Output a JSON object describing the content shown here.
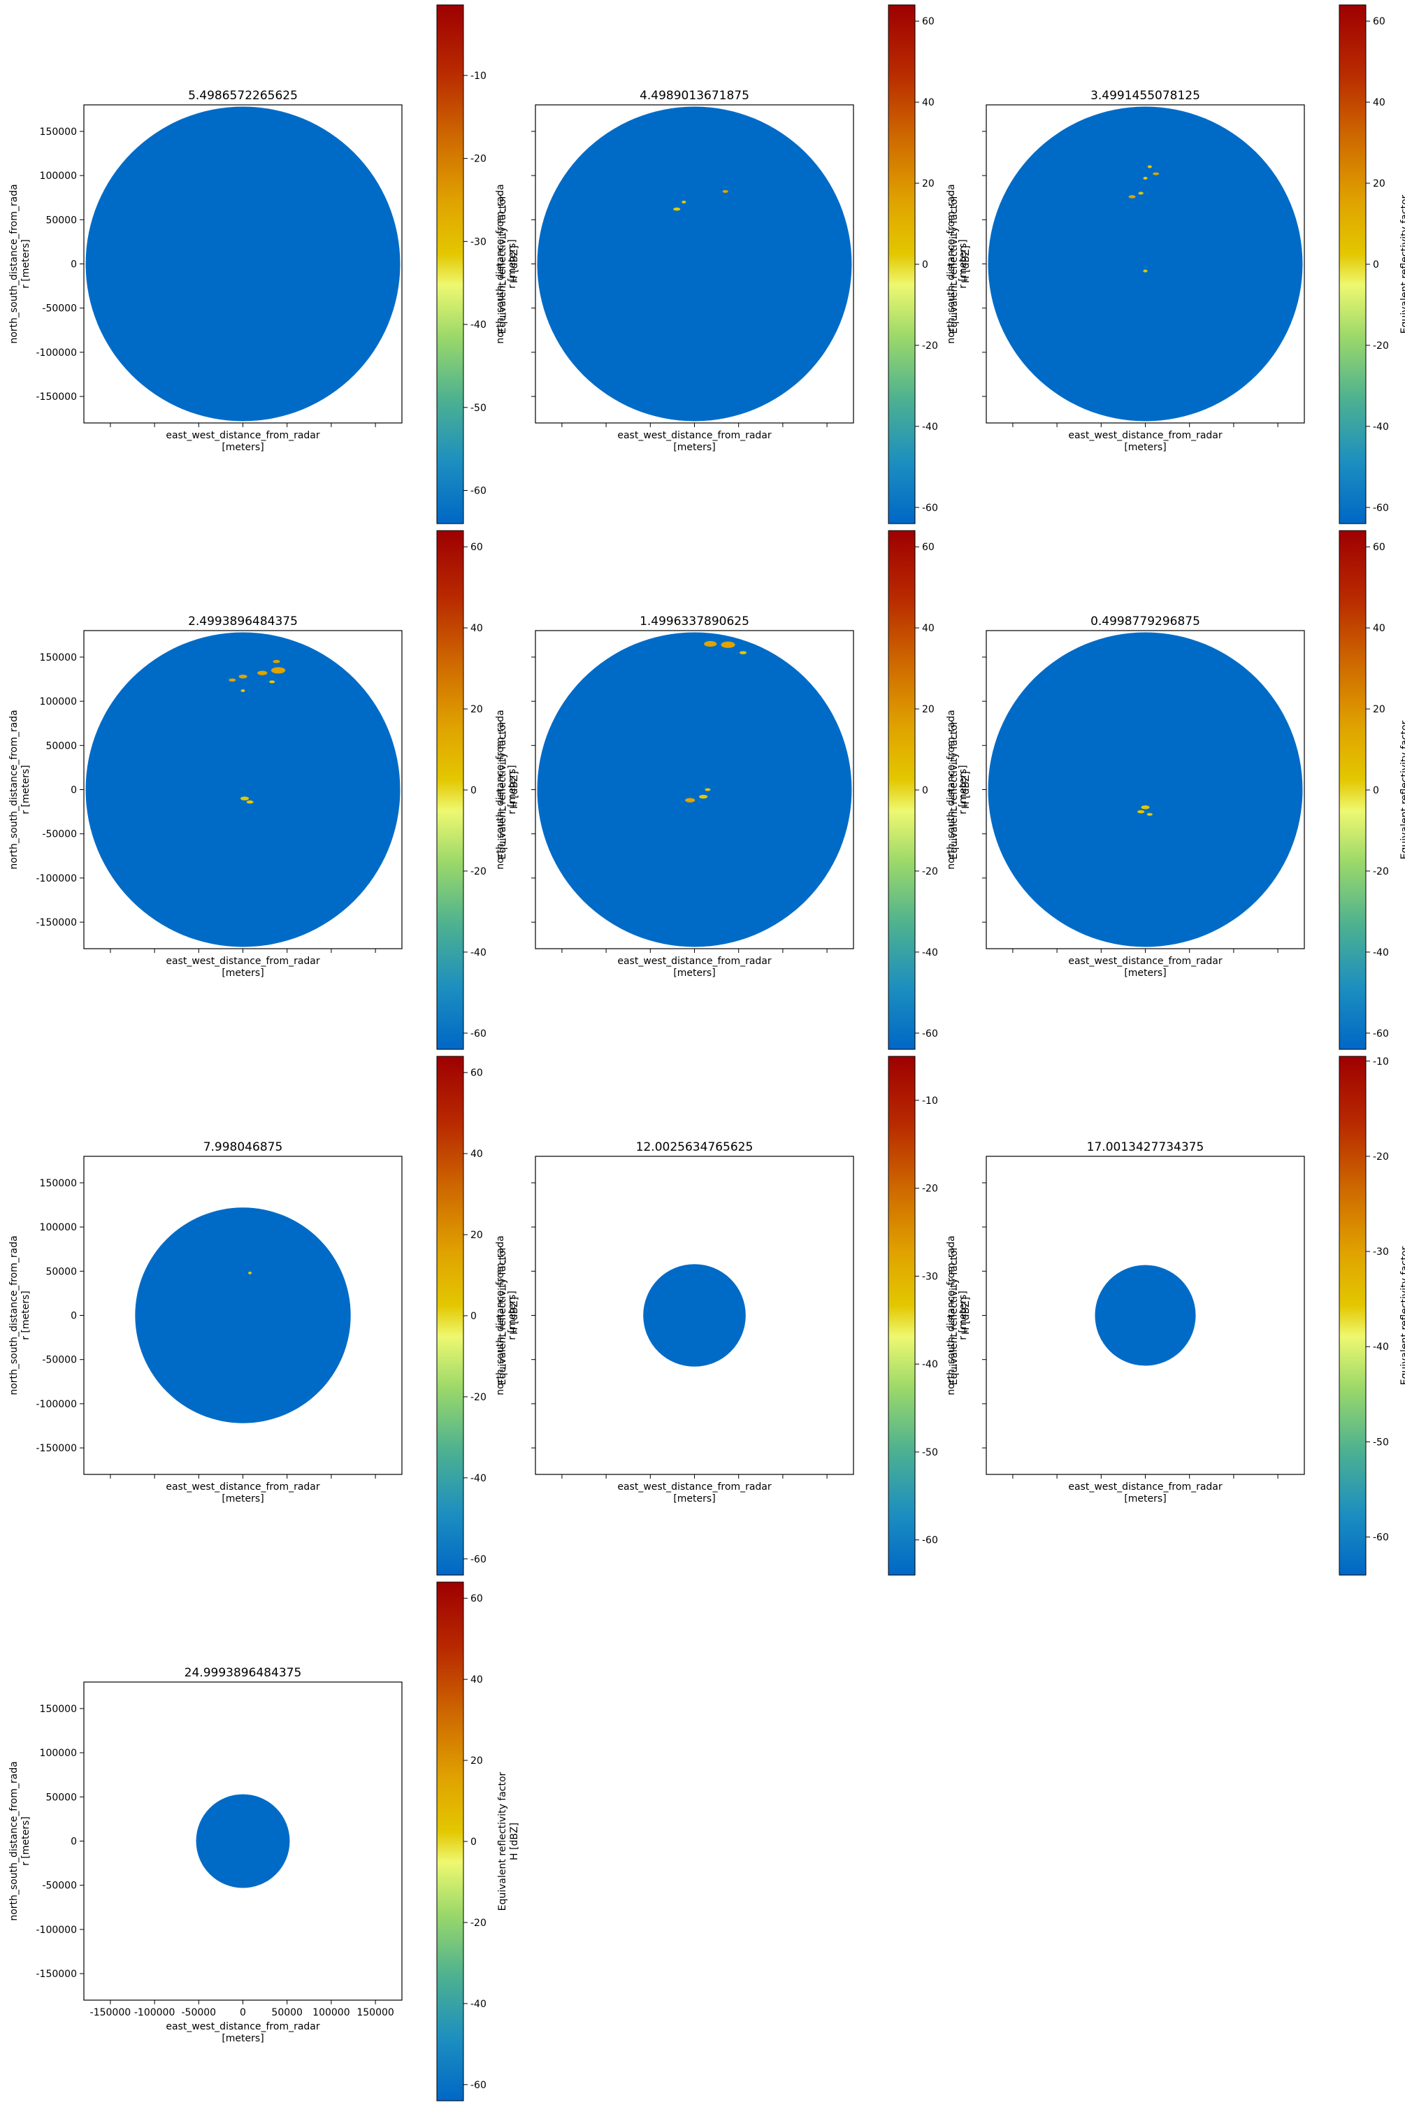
{
  "chart_data": [
    {
      "type": "heatmap",
      "title": "5.4986572265625",
      "xlabel": "east_west_distance_from_radar\n[meters]",
      "ylabel": "north_south_distance_from_rada\nr [meters]",
      "xlim": [
        -180000,
        180000
      ],
      "ylim": [
        -180000,
        180000
      ],
      "range_max_m": 178000,
      "show_x_ticklabels": false,
      "show_y_ticklabels": true,
      "colorbar": {
        "label": "Equivalent reflectivity factor\nH [dBZ]",
        "vmin": -64,
        "vmax": -1.5,
        "ticks": [
          -60,
          -50,
          -40,
          -30,
          -20,
          -10
        ]
      },
      "echoes": []
    },
    {
      "type": "heatmap",
      "title": "4.4989013671875",
      "xlabel": "east_west_distance_from_radar\n[meters]",
      "ylabel": "north_south_distance_from_rada\nr [meters]",
      "xlim": [
        -180000,
        180000
      ],
      "ylim": [
        -180000,
        180000
      ],
      "range_max_m": 178000,
      "show_x_ticklabels": false,
      "show_y_ticklabels": false,
      "colorbar": {
        "label": "Equivalent reflectivity factor\nH [dBZ]",
        "vmin": -64,
        "vmax": 64,
        "ticks": [
          -60,
          -40,
          -20,
          0,
          20,
          40,
          60
        ]
      },
      "echoes": [
        {
          "x": -20000,
          "y": 62000,
          "size": 2500,
          "dbz": 10
        },
        {
          "x": -12000,
          "y": 70000,
          "size": 1500,
          "dbz": 5
        },
        {
          "x": 35000,
          "y": 82000,
          "size": 2000,
          "dbz": 15
        }
      ]
    },
    {
      "type": "heatmap",
      "title": "3.4991455078125",
      "xlabel": "east_west_distance_from_radar\n[meters]",
      "ylabel": "north_south_distance_from_rada\nr [meters]",
      "xlim": [
        -180000,
        180000
      ],
      "ylim": [
        -180000,
        180000
      ],
      "range_max_m": 178000,
      "show_x_ticklabels": false,
      "show_y_ticklabels": false,
      "colorbar": {
        "label": "Equivalent reflectivity factor\nH [dBZ]",
        "vmin": -64,
        "vmax": 64,
        "ticks": [
          -60,
          -40,
          -20,
          0,
          20,
          40,
          60
        ]
      },
      "echoes": [
        {
          "x": -15000,
          "y": 76000,
          "size": 2500,
          "dbz": 15
        },
        {
          "x": -5000,
          "y": 80000,
          "size": 1800,
          "dbz": 10
        },
        {
          "x": 0,
          "y": 97000,
          "size": 1500,
          "dbz": 8
        },
        {
          "x": 5000,
          "y": 110000,
          "size": 1500,
          "dbz": 12
        },
        {
          "x": 12000,
          "y": 102000,
          "size": 2200,
          "dbz": 18
        },
        {
          "x": 0,
          "y": -8000,
          "size": 1500,
          "dbz": 5
        }
      ]
    },
    {
      "type": "heatmap",
      "title": "2.4993896484375",
      "xlabel": "east_west_distance_from_radar\n[meters]",
      "ylabel": "north_south_distance_from_rada\nr [meters]",
      "xlim": [
        -180000,
        180000
      ],
      "ylim": [
        -180000,
        180000
      ],
      "range_max_m": 178000,
      "show_x_ticklabels": false,
      "show_y_ticklabels": true,
      "colorbar": {
        "label": "Equivalent reflectivity factor\nH [dBZ]",
        "vmin": -64,
        "vmax": 64,
        "ticks": [
          -60,
          -40,
          -20,
          0,
          20,
          40,
          60
        ]
      },
      "echoes": [
        {
          "x": -12000,
          "y": 124000,
          "size": 2500,
          "dbz": 15
        },
        {
          "x": 0,
          "y": 128000,
          "size": 3000,
          "dbz": 18
        },
        {
          "x": 22000,
          "y": 132000,
          "size": 3500,
          "dbz": 20
        },
        {
          "x": 40000,
          "y": 135000,
          "size": 5000,
          "dbz": 22
        },
        {
          "x": 38000,
          "y": 145000,
          "size": 2500,
          "dbz": 15
        },
        {
          "x": 33000,
          "y": 122000,
          "size": 2000,
          "dbz": 10
        },
        {
          "x": 0,
          "y": 112000,
          "size": 1500,
          "dbz": 5
        },
        {
          "x": 2000,
          "y": -10000,
          "size": 3000,
          "dbz": 12
        },
        {
          "x": 8000,
          "y": -14000,
          "size": 2500,
          "dbz": 8
        }
      ]
    },
    {
      "type": "heatmap",
      "title": "1.4996337890625",
      "xlabel": "east_west_distance_from_radar\n[meters]",
      "ylabel": "north_south_distance_from_rada\nr [meters]",
      "xlim": [
        -180000,
        180000
      ],
      "ylim": [
        -180000,
        180000
      ],
      "range_max_m": 178000,
      "show_x_ticklabels": false,
      "show_y_ticklabels": false,
      "colorbar": {
        "label": "Equivalent reflectivity factor\nH [dBZ]",
        "vmin": -64,
        "vmax": 64,
        "ticks": [
          -60,
          -40,
          -20,
          0,
          20,
          40,
          60
        ]
      },
      "echoes": [
        {
          "x": 18000,
          "y": 165000,
          "size": 4500,
          "dbz": 20
        },
        {
          "x": 38000,
          "y": 164000,
          "size": 5000,
          "dbz": 22
        },
        {
          "x": 55000,
          "y": 155000,
          "size": 2500,
          "dbz": 12
        },
        {
          "x": -5000,
          "y": -12000,
          "size": 3500,
          "dbz": 15
        },
        {
          "x": 10000,
          "y": -8000,
          "size": 3000,
          "dbz": 10
        },
        {
          "x": 15000,
          "y": 0,
          "size": 2000,
          "dbz": 8
        }
      ]
    },
    {
      "type": "heatmap",
      "title": "0.4998779296875",
      "xlabel": "east_west_distance_from_radar\n[meters]",
      "ylabel": "north_south_distance_from_rada\nr [meters]",
      "xlim": [
        -180000,
        180000
      ],
      "ylim": [
        -180000,
        180000
      ],
      "range_max_m": 178000,
      "show_x_ticklabels": false,
      "show_y_ticklabels": false,
      "colorbar": {
        "label": "Equivalent reflectivity factor\nH [dBZ]",
        "vmin": -64,
        "vmax": 64,
        "ticks": [
          -60,
          -40,
          -20,
          0,
          20,
          40,
          60
        ]
      },
      "echoes": [
        {
          "x": 0,
          "y": -20000,
          "size": 3000,
          "dbz": 10
        },
        {
          "x": -5000,
          "y": -25000,
          "size": 2500,
          "dbz": 5
        },
        {
          "x": 5000,
          "y": -28000,
          "size": 2000,
          "dbz": 8
        }
      ]
    },
    {
      "type": "heatmap",
      "title": "7.998046875",
      "xlabel": "east_west_distance_from_radar\n[meters]",
      "ylabel": "north_south_distance_from_rada\nr [meters]",
      "xlim": [
        -180000,
        180000
      ],
      "ylim": [
        -180000,
        180000
      ],
      "range_max_m": 122000,
      "show_x_ticklabels": false,
      "show_y_ticklabels": true,
      "colorbar": {
        "label": "Equivalent reflectivity factor\nH [dBZ]",
        "vmin": -64,
        "vmax": 64,
        "ticks": [
          -60,
          -40,
          -20,
          0,
          20,
          40,
          60
        ]
      },
      "echoes": [
        {
          "x": 8000,
          "y": 48000,
          "size": 1200,
          "dbz": 5
        }
      ]
    },
    {
      "type": "heatmap",
      "title": "12.0025634765625",
      "xlabel": "east_west_distance_from_radar\n[meters]",
      "ylabel": "north_south_distance_from_rada\nr [meters]",
      "xlim": [
        -180000,
        180000
      ],
      "ylim": [
        -180000,
        180000
      ],
      "range_max_m": 58000,
      "show_x_ticklabels": false,
      "show_y_ticklabels": false,
      "colorbar": {
        "label": "Equivalent reflectivity factor\nH [dBZ]",
        "vmin": -64,
        "vmax": -5,
        "ticks": [
          -60,
          -50,
          -40,
          -30,
          -20,
          -10
        ]
      },
      "echoes": []
    },
    {
      "type": "heatmap",
      "title": "17.0013427734375",
      "xlabel": "east_west_distance_from_radar\n[meters]",
      "ylabel": "north_south_distance_from_rada\nr [meters]",
      "xlim": [
        -180000,
        180000
      ],
      "ylim": [
        -180000,
        180000
      ],
      "range_max_m": 57000,
      "show_x_ticklabels": false,
      "show_y_ticklabels": false,
      "colorbar": {
        "label": "Equivalent reflectivity factor\nH [dBZ]",
        "vmin": -64,
        "vmax": -9.5,
        "ticks": [
          -60,
          -50,
          -40,
          -30,
          -20,
          -10
        ]
      },
      "echoes": []
    },
    {
      "type": "heatmap",
      "title": "24.9993896484375",
      "xlabel": "east_west_distance_from_radar\n[meters]",
      "ylabel": "north_south_distance_from_rada\nr [meters]",
      "xlim": [
        -180000,
        180000
      ],
      "ylim": [
        -180000,
        180000
      ],
      "range_max_m": 53000,
      "show_x_ticklabels": true,
      "show_y_ticklabels": true,
      "colorbar": {
        "label": "Equivalent reflectivity factor\nH [dBZ]",
        "vmin": -64,
        "vmax": 64,
        "ticks": [
          -60,
          -40,
          -20,
          0,
          20,
          40,
          60
        ]
      },
      "echoes": []
    }
  ],
  "axis_ticks": [
    -150000,
    -100000,
    -50000,
    0,
    50000,
    100000,
    150000
  ],
  "colormap_stops": [
    "#0067c6",
    "#1d8fbf",
    "#4db190",
    "#9bd86a",
    "#eef870",
    "#e3c700",
    "#e0a300",
    "#cf6b00",
    "#b82a00",
    "#9e0000"
  ],
  "background_value_color": "#006bc7"
}
